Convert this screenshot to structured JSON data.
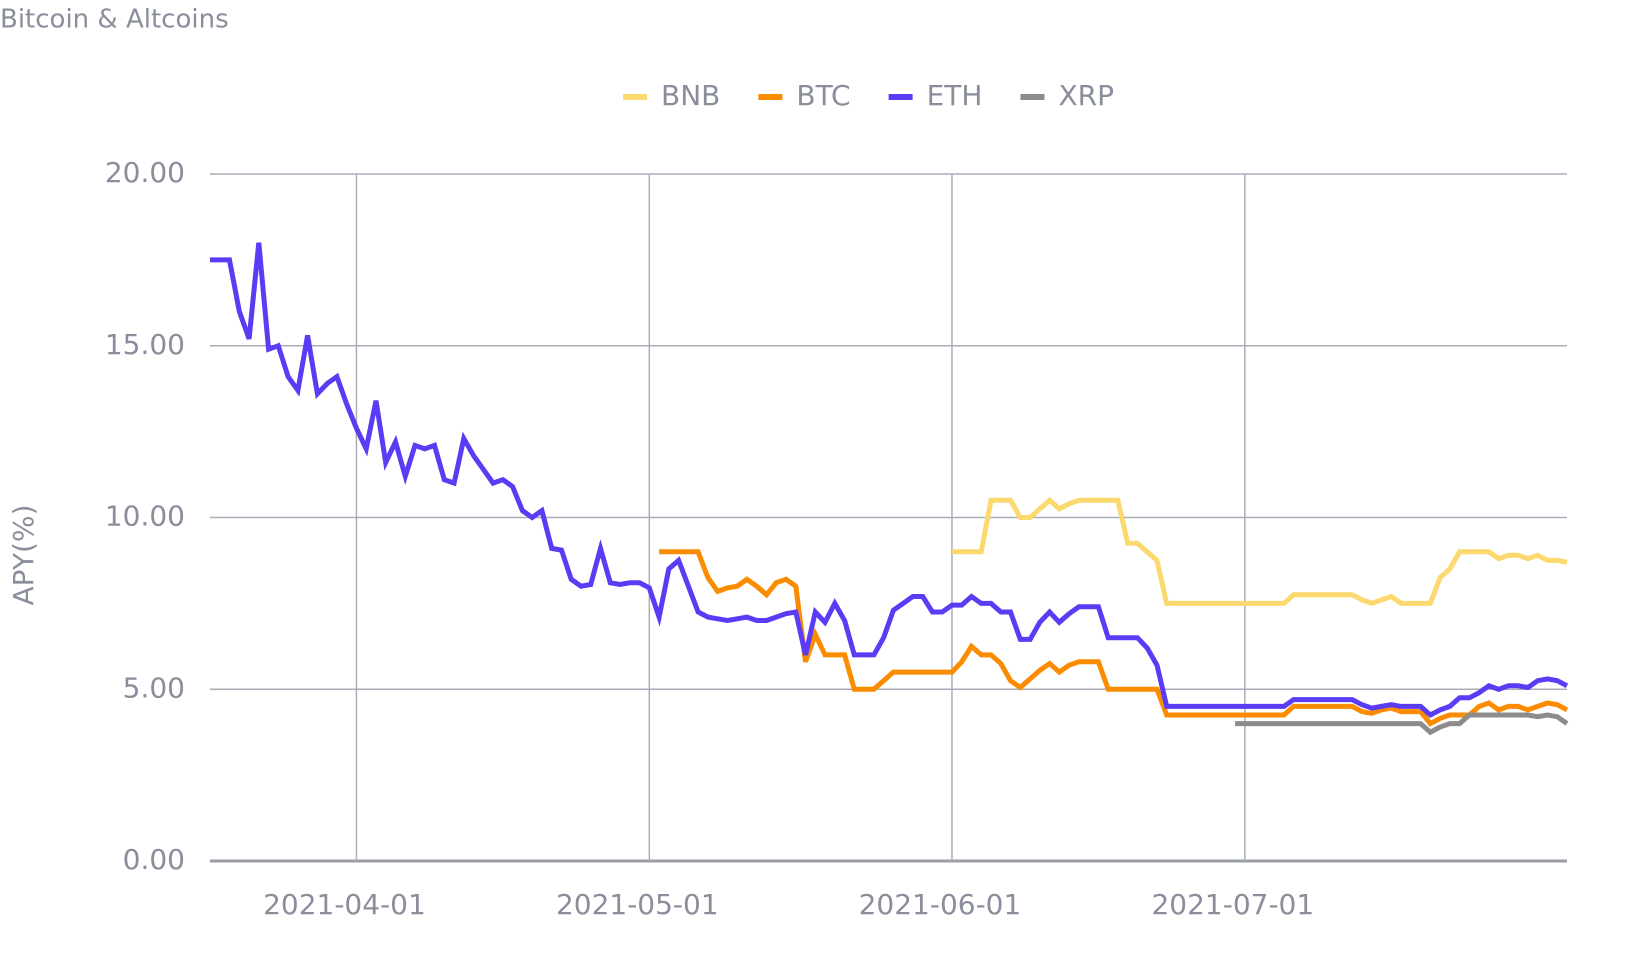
{
  "chart_data": {
    "type": "line",
    "title": "Bitcoin & Altcoins",
    "y_label": "APY(%)",
    "x": [
      "2021-03-17",
      "2021-03-18",
      "2021-03-19",
      "2021-03-20",
      "2021-03-21",
      "2021-03-22",
      "2021-03-23",
      "2021-03-24",
      "2021-03-25",
      "2021-03-26",
      "2021-03-27",
      "2021-03-28",
      "2021-03-29",
      "2021-03-30",
      "2021-03-31",
      "2021-04-01",
      "2021-04-02",
      "2021-04-03",
      "2021-04-04",
      "2021-04-05",
      "2021-04-06",
      "2021-04-07",
      "2021-04-08",
      "2021-04-09",
      "2021-04-10",
      "2021-04-11",
      "2021-04-12",
      "2021-04-13",
      "2021-04-14",
      "2021-04-15",
      "2021-04-16",
      "2021-04-17",
      "2021-04-18",
      "2021-04-19",
      "2021-04-20",
      "2021-04-21",
      "2021-04-22",
      "2021-04-23",
      "2021-04-24",
      "2021-04-25",
      "2021-04-26",
      "2021-04-27",
      "2021-04-28",
      "2021-04-29",
      "2021-04-30",
      "2021-05-01",
      "2021-05-02",
      "2021-05-03",
      "2021-05-04",
      "2021-05-05",
      "2021-05-06",
      "2021-05-07",
      "2021-05-08",
      "2021-05-09",
      "2021-05-10",
      "2021-05-11",
      "2021-05-12",
      "2021-05-13",
      "2021-05-14",
      "2021-05-15",
      "2021-05-16",
      "2021-05-17",
      "2021-05-18",
      "2021-05-19",
      "2021-05-20",
      "2021-05-21",
      "2021-05-22",
      "2021-05-23",
      "2021-05-24",
      "2021-05-25",
      "2021-05-26",
      "2021-05-27",
      "2021-05-28",
      "2021-05-29",
      "2021-05-30",
      "2021-05-31",
      "2021-06-01",
      "2021-06-02",
      "2021-06-03",
      "2021-06-04",
      "2021-06-05",
      "2021-06-06",
      "2021-06-07",
      "2021-06-08",
      "2021-06-09",
      "2021-06-10",
      "2021-06-11",
      "2021-06-12",
      "2021-06-13",
      "2021-06-14",
      "2021-06-15",
      "2021-06-16",
      "2021-06-17",
      "2021-06-18",
      "2021-06-19",
      "2021-06-20",
      "2021-06-21",
      "2021-06-22",
      "2021-06-23",
      "2021-06-24",
      "2021-06-25",
      "2021-06-26",
      "2021-06-27",
      "2021-06-28",
      "2021-06-29",
      "2021-06-30",
      "2021-07-01",
      "2021-07-02",
      "2021-07-03",
      "2021-07-04",
      "2021-07-05",
      "2021-07-06",
      "2021-07-07",
      "2021-07-08",
      "2021-07-09",
      "2021-07-10",
      "2021-07-11",
      "2021-07-12",
      "2021-07-13",
      "2021-07-14",
      "2021-07-15",
      "2021-07-16",
      "2021-07-17",
      "2021-07-18",
      "2021-07-19",
      "2021-07-20",
      "2021-07-21",
      "2021-07-22",
      "2021-07-23",
      "2021-07-24",
      "2021-07-25",
      "2021-07-26",
      "2021-07-27",
      "2021-07-28",
      "2021-07-29",
      "2021-07-30",
      "2021-07-31",
      "2021-08-01",
      "2021-08-02",
      "2021-08-03"
    ],
    "series": [
      {
        "name": "BNB",
        "color": "#fcd96e",
        "values": [
          null,
          null,
          null,
          null,
          null,
          null,
          null,
          null,
          null,
          null,
          null,
          null,
          null,
          null,
          null,
          null,
          null,
          null,
          null,
          null,
          null,
          null,
          null,
          null,
          null,
          null,
          null,
          null,
          null,
          null,
          null,
          null,
          null,
          null,
          null,
          null,
          null,
          null,
          null,
          null,
          null,
          null,
          null,
          null,
          null,
          null,
          null,
          null,
          null,
          null,
          null,
          null,
          null,
          null,
          null,
          null,
          null,
          null,
          null,
          null,
          null,
          null,
          null,
          null,
          null,
          null,
          null,
          null,
          null,
          null,
          null,
          null,
          null,
          null,
          null,
          null,
          9.0,
          9.0,
          9.0,
          9.0,
          10.5,
          10.5,
          10.5,
          10.0,
          10.0,
          10.25,
          10.5,
          10.25,
          10.4,
          10.5,
          10.5,
          10.5,
          10.5,
          10.5,
          9.25,
          9.25,
          9.0,
          8.75,
          7.5,
          7.5,
          7.5,
          7.5,
          7.5,
          7.5,
          7.5,
          7.5,
          7.5,
          7.5,
          7.5,
          7.5,
          7.5,
          7.75,
          7.75,
          7.75,
          7.75,
          7.75,
          7.75,
          7.75,
          7.6,
          7.5,
          7.6,
          7.7,
          7.5,
          7.5,
          7.5,
          7.5,
          8.25,
          8.5,
          9.0,
          9.0,
          9.0,
          9.0,
          8.8,
          8.9,
          8.9,
          8.8,
          8.9,
          8.75,
          8.75,
          8.7
        ]
      },
      {
        "name": "BTC",
        "color": "#fb8c00",
        "values": [
          null,
          null,
          null,
          null,
          null,
          null,
          null,
          null,
          null,
          null,
          null,
          null,
          null,
          null,
          null,
          null,
          null,
          null,
          null,
          null,
          null,
          null,
          null,
          null,
          null,
          null,
          null,
          null,
          null,
          null,
          null,
          null,
          null,
          null,
          null,
          null,
          null,
          null,
          null,
          null,
          null,
          null,
          null,
          null,
          null,
          null,
          9.0,
          9.0,
          9.0,
          9.0,
          9.0,
          8.25,
          7.85,
          7.95,
          8.0,
          8.2,
          8.0,
          7.75,
          8.1,
          8.2,
          8.0,
          5.8,
          6.6,
          6.0,
          6.0,
          6.0,
          5.0,
          5.0,
          5.0,
          5.25,
          5.5,
          5.5,
          5.5,
          5.5,
          5.5,
          5.5,
          5.5,
          5.8,
          6.25,
          6.0,
          6.0,
          5.75,
          5.25,
          5.05,
          5.3,
          5.55,
          5.75,
          5.5,
          5.7,
          5.8,
          5.8,
          5.8,
          5.0,
          5.0,
          5.0,
          5.0,
          5.0,
          5.0,
          4.25,
          4.25,
          4.25,
          4.25,
          4.25,
          4.25,
          4.25,
          4.25,
          4.25,
          4.25,
          4.25,
          4.25,
          4.25,
          4.5,
          4.5,
          4.5,
          4.5,
          4.5,
          4.5,
          4.5,
          4.35,
          4.3,
          4.4,
          4.45,
          4.35,
          4.35,
          4.35,
          4.0,
          4.15,
          4.25,
          4.25,
          4.25,
          4.5,
          4.6,
          4.4,
          4.5,
          4.5,
          4.4,
          4.5,
          4.6,
          4.55,
          4.4
        ]
      },
      {
        "name": "ETH",
        "color": "#5b3cf5",
        "values": [
          17.5,
          17.5,
          17.5,
          16.0,
          15.2,
          18.0,
          14.9,
          15.0,
          14.1,
          13.7,
          15.3,
          13.6,
          13.9,
          14.1,
          13.3,
          12.6,
          12.0,
          13.4,
          11.6,
          12.2,
          11.2,
          12.1,
          12.0,
          12.1,
          11.1,
          11.0,
          12.3,
          11.8,
          11.4,
          11.0,
          11.1,
          10.9,
          10.2,
          10.0,
          10.2,
          9.1,
          9.05,
          8.2,
          8.0,
          8.05,
          9.1,
          8.1,
          8.05,
          8.1,
          8.1,
          7.95,
          7.1,
          8.5,
          8.75,
          8.0,
          7.25,
          7.1,
          7.05,
          7.0,
          7.05,
          7.1,
          7.0,
          7.0,
          7.1,
          7.2,
          7.25,
          6.0,
          7.25,
          6.95,
          7.5,
          7.0,
          6.0,
          6.0,
          6.0,
          6.5,
          7.3,
          7.5,
          7.7,
          7.7,
          7.25,
          7.25,
          7.45,
          7.45,
          7.7,
          7.5,
          7.5,
          7.25,
          7.25,
          6.45,
          6.45,
          6.95,
          7.25,
          6.95,
          7.2,
          7.4,
          7.4,
          7.4,
          6.5,
          6.5,
          6.5,
          6.5,
          6.2,
          5.7,
          4.5,
          4.5,
          4.5,
          4.5,
          4.5,
          4.5,
          4.5,
          4.5,
          4.5,
          4.5,
          4.5,
          4.5,
          4.5,
          4.7,
          4.7,
          4.7,
          4.7,
          4.7,
          4.7,
          4.7,
          4.55,
          4.45,
          4.5,
          4.55,
          4.5,
          4.5,
          4.5,
          4.25,
          4.4,
          4.5,
          4.75,
          4.75,
          4.9,
          5.1,
          5.0,
          5.1,
          5.1,
          5.05,
          5.25,
          5.3,
          5.25,
          5.1
        ]
      },
      {
        "name": "XRP",
        "color": "#8c8c8c",
        "values": [
          null,
          null,
          null,
          null,
          null,
          null,
          null,
          null,
          null,
          null,
          null,
          null,
          null,
          null,
          null,
          null,
          null,
          null,
          null,
          null,
          null,
          null,
          null,
          null,
          null,
          null,
          null,
          null,
          null,
          null,
          null,
          null,
          null,
          null,
          null,
          null,
          null,
          null,
          null,
          null,
          null,
          null,
          null,
          null,
          null,
          null,
          null,
          null,
          null,
          null,
          null,
          null,
          null,
          null,
          null,
          null,
          null,
          null,
          null,
          null,
          null,
          null,
          null,
          null,
          null,
          null,
          null,
          null,
          null,
          null,
          null,
          null,
          null,
          null,
          null,
          null,
          null,
          null,
          null,
          null,
          null,
          null,
          null,
          null,
          null,
          null,
          null,
          null,
          null,
          null,
          null,
          null,
          null,
          null,
          null,
          null,
          null,
          null,
          null,
          null,
          null,
          null,
          null,
          null,
          null,
          4.0,
          4.0,
          4.0,
          4.0,
          4.0,
          4.0,
          4.0,
          4.0,
          4.0,
          4.0,
          4.0,
          4.0,
          4.0,
          4.0,
          4.0,
          4.0,
          4.0,
          4.0,
          4.0,
          4.0,
          3.75,
          3.9,
          4.0,
          4.0,
          4.25,
          4.25,
          4.25,
          4.25,
          4.25,
          4.25,
          4.25,
          4.2,
          4.25,
          4.2,
          4.0
        ]
      }
    ],
    "xlim": [
      "2021-03-17",
      "2021-08-03"
    ],
    "xticks": [
      "2021-04-01",
      "2021-05-01",
      "2021-06-01",
      "2021-07-01"
    ],
    "ylim": [
      0,
      20
    ],
    "yticks": [
      {
        "value": 0,
        "label": "0.00"
      },
      {
        "value": 5,
        "label": "5.00"
      },
      {
        "value": 10,
        "label": "10.00"
      },
      {
        "value": 15,
        "label": "15.00"
      },
      {
        "value": 20,
        "label": "20.00"
      }
    ],
    "grid": true,
    "legend": "top"
  }
}
